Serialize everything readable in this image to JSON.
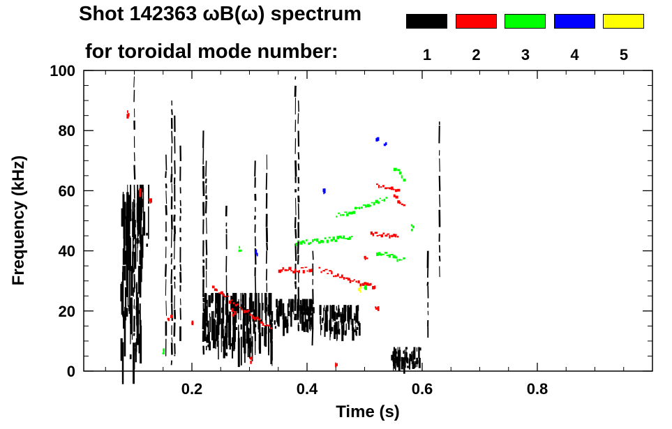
{
  "title_line1": "Shot 142363 ωB(ω) spectrum",
  "title_line2": "for toroidal mode number:",
  "legend": [
    {
      "label": "1",
      "color": "#000000"
    },
    {
      "label": "2",
      "color": "#ff0000"
    },
    {
      "label": "3",
      "color": "#00ff00"
    },
    {
      "label": "4",
      "color": "#0000ff"
    },
    {
      "label": "5",
      "color": "#ffff00"
    }
  ],
  "chart_data": {
    "type": "heatmap",
    "xlabel": "Time (s)",
    "ylabel": "Frequency (kHz)",
    "xlim": [
      0.0,
      1.0
    ],
    "ylim": [
      0,
      100
    ],
    "xticks": [
      {
        "value": 0.2,
        "label": "0.2"
      },
      {
        "value": 0.4,
        "label": "0.4"
      },
      {
        "value": 0.6,
        "label": "0.6"
      },
      {
        "value": 0.8,
        "label": "0.8"
      }
    ],
    "yticks": [
      {
        "value": 0,
        "label": "0"
      },
      {
        "value": 20,
        "label": "20"
      },
      {
        "value": 40,
        "label": "40"
      },
      {
        "value": 60,
        "label": "60"
      },
      {
        "value": 80,
        "label": "80"
      },
      {
        "value": 100,
        "label": "100"
      }
    ],
    "series": [
      {
        "name": "1",
        "color": "#000000",
        "regions": [
          {
            "t": [
              0.075,
              0.125
            ],
            "f": [
              35,
              62
            ]
          },
          {
            "t": [
              0.075,
              0.11
            ],
            "f": [
              2,
              35
            ]
          },
          {
            "t": [
              0.22,
              0.34
            ],
            "f": [
              6,
              26
            ]
          },
          {
            "t": [
              0.34,
              0.41
            ],
            "f": [
              14,
              24
            ]
          },
          {
            "t": [
              0.42,
              0.49
            ],
            "f": [
              12,
              22
            ]
          },
          {
            "t": [
              0.545,
              0.595
            ],
            "f": [
              1,
              8
            ]
          }
        ],
        "vertical_streaks": [
          {
            "t": 0.1,
            "f": [
              5,
              98
            ]
          },
          {
            "t": 0.155,
            "f": [
              3,
              72
            ]
          },
          {
            "t": 0.165,
            "f": [
              2,
              90
            ]
          },
          {
            "t": 0.17,
            "f": [
              5,
              85
            ]
          },
          {
            "t": 0.18,
            "f": [
              10,
              75
            ]
          },
          {
            "t": 0.22,
            "f": [
              5,
              80
            ]
          },
          {
            "t": 0.225,
            "f": [
              15,
              70
            ]
          },
          {
            "t": 0.26,
            "f": [
              5,
              55
            ]
          },
          {
            "t": 0.31,
            "f": [
              10,
              70
            ]
          },
          {
            "t": 0.33,
            "f": [
              20,
              72
            ]
          },
          {
            "t": 0.38,
            "f": [
              20,
              98
            ]
          },
          {
            "t": 0.385,
            "f": [
              15,
              90
            ]
          },
          {
            "t": 0.41,
            "f": [
              8,
              40
            ]
          },
          {
            "t": 0.61,
            "f": [
              10,
              40
            ]
          },
          {
            "t": 0.63,
            "f": [
              30,
              83
            ]
          }
        ]
      },
      {
        "name": "2",
        "color": "#ff0000",
        "ridges": [
          {
            "t": [
              0.235,
              0.34
            ],
            "f": [
              28,
              14
            ]
          },
          {
            "t": [
              0.35,
              0.41
            ],
            "f": [
              34,
              34
            ]
          },
          {
            "t": [
              0.42,
              0.52
            ],
            "f": [
              34,
              28
            ]
          },
          {
            "t": [
              0.51,
              0.56
            ],
            "f": [
              46,
              45
            ]
          },
          {
            "t": [
              0.52,
              0.56
            ],
            "f": [
              62,
              60
            ]
          },
          {
            "t": [
              0.55,
              0.57
            ],
            "f": [
              59,
              54
            ]
          }
        ],
        "spots": [
          {
            "t": 0.088,
            "f": 86
          },
          {
            "t": 0.11,
            "f": 60
          },
          {
            "t": 0.125,
            "f": 57
          },
          {
            "t": 0.16,
            "f": 18
          },
          {
            "t": 0.2,
            "f": 16
          },
          {
            "t": 0.27,
            "f": 20
          },
          {
            "t": 0.3,
            "f": 4
          },
          {
            "t": 0.5,
            "f": 38
          },
          {
            "t": 0.52,
            "f": 22
          },
          {
            "t": 0.45,
            "f": 3
          }
        ]
      },
      {
        "name": "3",
        "color": "#00ff00",
        "ridges": [
          {
            "t": [
              0.38,
              0.48
            ],
            "f": [
              43,
              45
            ]
          },
          {
            "t": [
              0.45,
              0.54
            ],
            "f": [
              52,
              58
            ]
          },
          {
            "t": [
              0.52,
              0.57
            ],
            "f": [
              40,
              37
            ]
          },
          {
            "t": [
              0.55,
              0.57
            ],
            "f": [
              68,
              64
            ]
          }
        ],
        "spots": [
          {
            "t": 0.15,
            "f": 7
          },
          {
            "t": 0.28,
            "f": 41
          },
          {
            "t": 0.5,
            "f": 28
          },
          {
            "t": 0.58,
            "f": 48
          }
        ]
      },
      {
        "name": "4",
        "color": "#0000ff",
        "spots": [
          {
            "t": 0.52,
            "f": 78
          },
          {
            "t": 0.535,
            "f": 76
          },
          {
            "t": 0.43,
            "f": 61
          },
          {
            "t": 0.31,
            "f": 40
          }
        ]
      },
      {
        "name": "5",
        "color": "#ffff00",
        "spots": [
          {
            "t": 0.49,
            "f": 28
          }
        ]
      }
    ]
  }
}
